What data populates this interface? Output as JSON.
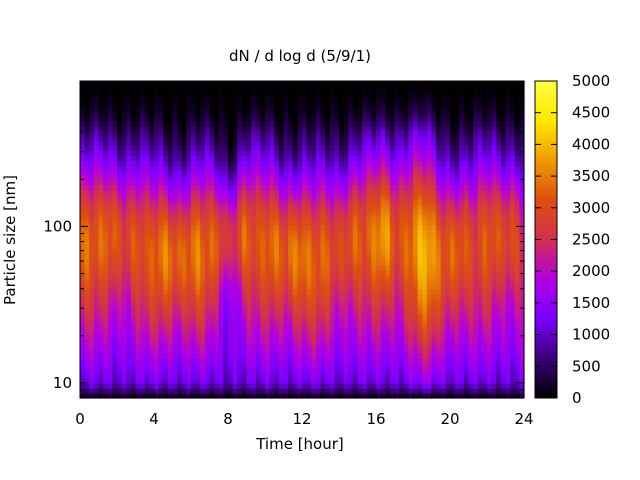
{
  "chart_data": {
    "type": "heatmap",
    "title": "dN / d log d (5/9/1)",
    "xlabel": "Time [hour]",
    "ylabel": "Particle size [nm]",
    "x_range": [
      0,
      24
    ],
    "x_ticks": [
      "0",
      "4",
      "8",
      "12",
      "16",
      "20",
      "24"
    ],
    "y_scale": "log",
    "y_range": [
      8,
      850
    ],
    "y_ticks": [
      {
        "value": 10,
        "label": "10"
      },
      {
        "value": 100,
        "label": "100"
      }
    ],
    "color_scale": {
      "range": [
        0,
        5000
      ],
      "ticks": [
        "0",
        "500",
        "1000",
        "1500",
        "2000",
        "2500",
        "3000",
        "3500",
        "4000",
        "4500",
        "5000"
      ],
      "colors": [
        "#000000",
        "#3a0077",
        "#7a00ff",
        "#b300e0",
        "#d23050",
        "#dd5010",
        "#ef9a00",
        "#ffe800",
        "#ffff40"
      ]
    },
    "grid": false,
    "summary": {
      "peak_size_nm": 100,
      "peak_density_max": 4200,
      "peak_time_hour": 18.5
    }
  }
}
